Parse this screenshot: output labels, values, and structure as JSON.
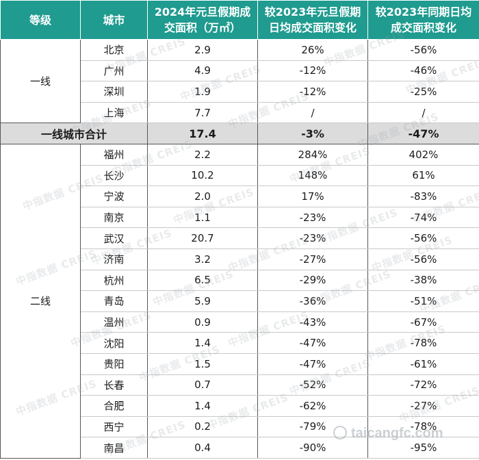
{
  "table": {
    "headers": {
      "tier": "等级",
      "city": "城市",
      "area": "2024年元旦假期成交面积（万㎡）",
      "vs_holiday": "较2023年元旦假期日均成交面积变化",
      "vs_same_period": "较2023年同期日均成交面积变化"
    },
    "tier1": {
      "label": "一线",
      "rows": [
        {
          "city": "北京",
          "area": "2.9",
          "vs_holiday": "26%",
          "vs_same_period": "-56%"
        },
        {
          "city": "广州",
          "area": "4.9",
          "vs_holiday": "-12%",
          "vs_same_period": "-46%"
        },
        {
          "city": "深圳",
          "area": "1.9",
          "vs_holiday": "-12%",
          "vs_same_period": "-25%"
        },
        {
          "city": "上海",
          "area": "7.7",
          "vs_holiday": "/",
          "vs_same_period": "/"
        }
      ]
    },
    "subtotal": {
      "label": "一线城市合计",
      "area": "17.4",
      "vs_holiday": "-3%",
      "vs_same_period": "-47%"
    },
    "tier2": {
      "label": "二线",
      "rows": [
        {
          "city": "福州",
          "area": "2.2",
          "vs_holiday": "284%",
          "vs_same_period": "402%"
        },
        {
          "city": "长沙",
          "area": "10.2",
          "vs_holiday": "148%",
          "vs_same_period": "61%"
        },
        {
          "city": "宁波",
          "area": "2.0",
          "vs_holiday": "17%",
          "vs_same_period": "-83%"
        },
        {
          "city": "南京",
          "area": "1.1",
          "vs_holiday": "-23%",
          "vs_same_period": "-74%"
        },
        {
          "city": "武汉",
          "area": "20.7",
          "vs_holiday": "-23%",
          "vs_same_period": "-56%"
        },
        {
          "city": "济南",
          "area": "3.2",
          "vs_holiday": "-27%",
          "vs_same_period": "-56%"
        },
        {
          "city": "杭州",
          "area": "6.5",
          "vs_holiday": "-29%",
          "vs_same_period": "-38%"
        },
        {
          "city": "青岛",
          "area": "5.9",
          "vs_holiday": "-36%",
          "vs_same_period": "-51%"
        },
        {
          "city": "温州",
          "area": "0.9",
          "vs_holiday": "-43%",
          "vs_same_period": "-67%"
        },
        {
          "city": "沈阳",
          "area": "1.4",
          "vs_holiday": "-47%",
          "vs_same_period": "-78%"
        },
        {
          "city": "贵阳",
          "area": "1.5",
          "vs_holiday": "-47%",
          "vs_same_period": "-61%"
        },
        {
          "city": "长春",
          "area": "0.7",
          "vs_holiday": "-52%",
          "vs_same_period": "-72%"
        },
        {
          "city": "合肥",
          "area": "1.4",
          "vs_holiday": "-62%",
          "vs_same_period": "-27%"
        },
        {
          "city": "西宁",
          "area": "0.2",
          "vs_holiday": "-79%",
          "vs_same_period": "-78%"
        },
        {
          "city": "南昌",
          "area": "0.4",
          "vs_holiday": "-90%",
          "vs_same_period": "-95%"
        }
      ]
    }
  },
  "watermark": {
    "text": "中指数据 CREIS",
    "site": "taicangfc.com"
  }
}
